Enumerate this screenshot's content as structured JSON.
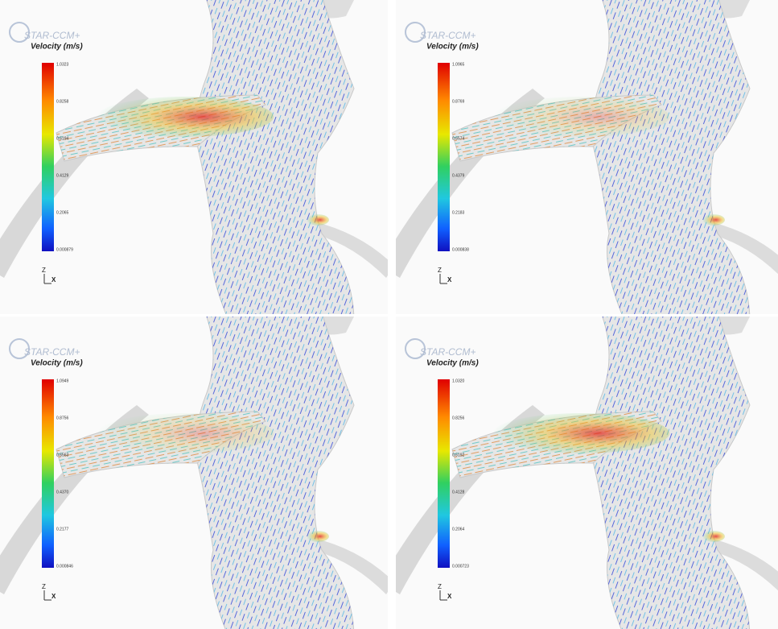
{
  "panels": [
    {
      "logo": "STAR-CCM+",
      "title": "Velocity (m/s)",
      "colorbar_labels": [
        "1.0323",
        "0.8258",
        "0.6194",
        "0.4129",
        "0.2065",
        "0.000879"
      ],
      "axis_z": "Z",
      "axis_x": "X"
    },
    {
      "logo": "STAR-CCM+",
      "title": "Velocity (m/s)",
      "colorbar_labels": [
        "1.0965",
        "0.8769",
        "0.6574",
        "0.4379",
        "0.2183",
        "0.000838"
      ],
      "axis_z": "Z",
      "axis_x": "X"
    },
    {
      "logo": "STAR-CCM+",
      "title": "Velocity (m/s)",
      "colorbar_labels": [
        "1.0949",
        "0.8756",
        "0.6563",
        "0.4370",
        "0.2177",
        "0.000846"
      ],
      "axis_z": "Z",
      "axis_x": "X"
    },
    {
      "logo": "STAR-CCM+",
      "title": "Velocity (m/s)",
      "colorbar_labels": [
        "1.0320",
        "0.8256",
        "0.6192",
        "0.4128",
        "0.2064",
        "0.000723"
      ],
      "axis_z": "Z",
      "axis_x": "X"
    }
  ]
}
